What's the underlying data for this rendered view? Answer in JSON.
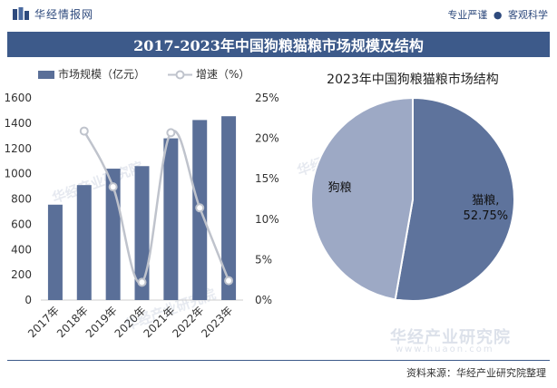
{
  "header": {
    "brand": "华经情报网",
    "slogan_left": "专业严谨",
    "slogan_dot": "●",
    "slogan_right": "客观科学"
  },
  "title": "2017-2023年中国狗粮猫粮市场规模及结构",
  "colors": {
    "title_bg": "#3d5a8a",
    "bar": "#5a6f98",
    "line": "#bfc3cc",
    "cat_slice": "#5e739c",
    "dog_slice": "#9da9c5"
  },
  "chart_data": [
    {
      "type": "bar",
      "categories": [
        "2017年",
        "2018年",
        "2019年",
        "2020年",
        "2021年",
        "2022年",
        "2023年"
      ],
      "series": [
        {
          "name": "市场规模（亿元）",
          "type": "bar",
          "axis": "left",
          "values": [
            755,
            910,
            1040,
            1060,
            1280,
            1425,
            1455
          ]
        },
        {
          "name": "增速（%）",
          "type": "line",
          "axis": "right",
          "values": [
            null,
            20.9,
            14.0,
            2.2,
            20.7,
            11.4,
            2.4
          ]
        }
      ],
      "ylim_left": [
        0,
        1600
      ],
      "yticks_left": [
        "0",
        "200",
        "400",
        "600",
        "800",
        "1000",
        "1200",
        "1400",
        "1600"
      ],
      "ylim_right": [
        0,
        25
      ],
      "yticks_right": [
        "0%",
        "5%",
        "10%",
        "15%",
        "20%",
        "25%"
      ],
      "legend": [
        "市场规模（亿元）",
        "增速（%）"
      ],
      "legend_position": "top-left"
    },
    {
      "type": "pie",
      "title": "2023年中国狗粮猫粮市场结构",
      "slices": [
        {
          "label": "猫粮",
          "value": 52.75,
          "display": "52.75%"
        },
        {
          "label": "狗粮",
          "value": 47.25
        }
      ]
    }
  ],
  "watermark": {
    "name": "华经产业研究院",
    "url": "www.huaon.com"
  },
  "footer": {
    "source_label": "资料来源：",
    "source": "华经产业研究院整理"
  }
}
